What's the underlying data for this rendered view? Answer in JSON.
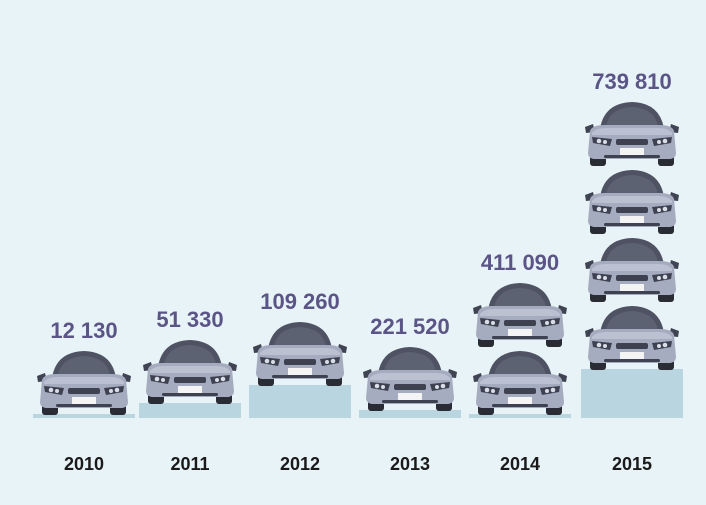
{
  "chart_data": {
    "type": "bar",
    "categories": [
      "2010",
      "2011",
      "2012",
      "2013",
      "2014",
      "2015"
    ],
    "values": [
      12130,
      51330,
      109260,
      221520,
      411090,
      739810
    ],
    "value_labels": [
      "12 130",
      "51 330",
      "109 260",
      "221 520",
      "411 090",
      "739 810"
    ],
    "title": "",
    "xlabel": "",
    "ylabel": "",
    "ylim": [
      0,
      800000
    ],
    "grid": false,
    "legend": "none",
    "colors": {
      "background": "#e7f3f6",
      "base_block": "#b9d5df",
      "value_text": "#5b5487",
      "category_text": "#1a1a1a",
      "car_body": "#a6acbf",
      "car_roof": "#4e5262"
    },
    "icons": {
      "mark": "car-icon"
    }
  }
}
